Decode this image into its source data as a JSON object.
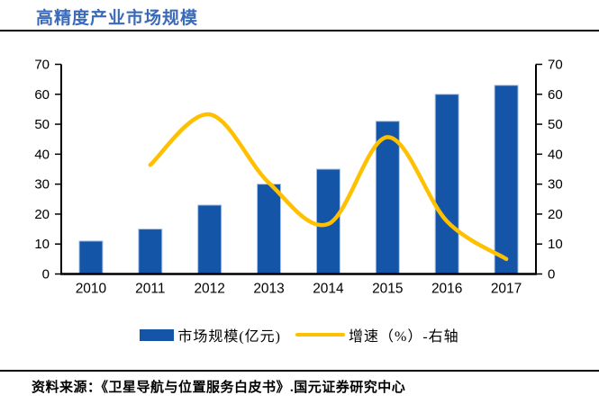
{
  "title": "高精度产业市场规模",
  "source_note": "资料来源：《卫星导航与位置服务白皮书》.国元证券研究中心",
  "colors": {
    "title": "#3a6ab8",
    "bar": "#1455a8",
    "bar_border": "#aec3e4",
    "line": "#ffc000",
    "axis": "#000000",
    "rule": "#000000"
  },
  "legend": {
    "bar_label": "市场规模(亿元)",
    "line_label": "增速（%）-右轴"
  },
  "chart_data": {
    "type": "bar",
    "subtype": "bar+line combo",
    "title": "高精度产业市场规模",
    "categories": [
      "2010",
      "2011",
      "2012",
      "2013",
      "2014",
      "2015",
      "2016",
      "2017"
    ],
    "series": [
      {
        "name": "市场规模(亿元)",
        "type": "bar",
        "axis": "left",
        "values": [
          11,
          15,
          23,
          30,
          35,
          51,
          60,
          63
        ]
      },
      {
        "name": "增速（%）-右轴",
        "type": "line",
        "axis": "right",
        "values": [
          null,
          36.4,
          53.3,
          30.4,
          16.7,
          45.7,
          17.6,
          5.0
        ]
      }
    ],
    "left_axis": {
      "min": 0,
      "max": 70,
      "ticks": [
        0,
        10,
        20,
        30,
        40,
        50,
        60,
        70
      ]
    },
    "right_axis": {
      "min": 0,
      "max": 70,
      "ticks": [
        0,
        10,
        20,
        30,
        40,
        50,
        60,
        70
      ]
    },
    "grid": false,
    "legend_position": "bottom"
  }
}
